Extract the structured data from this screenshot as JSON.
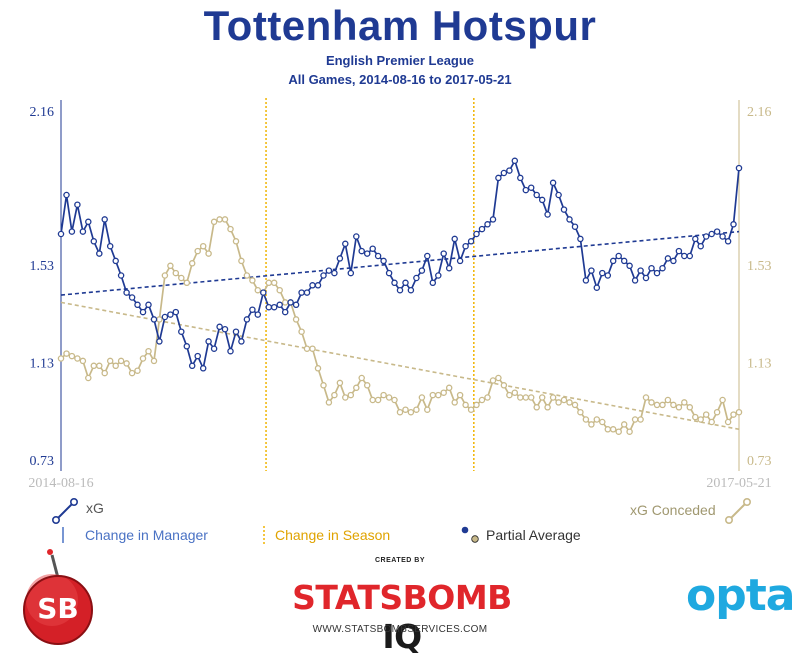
{
  "header": {
    "title": "Tottenham Hotspur",
    "subtitle": "English Premier League",
    "date_range": "All Games, 2014-08-16 to 2017-05-21"
  },
  "legend": {
    "xg": "xG",
    "xg_conceded": "xG Conceded",
    "change_manager": "Change in Manager",
    "change_season": "Change in Season",
    "partial_average": "Partial Average"
  },
  "footer": {
    "created_by": "CREATED BY",
    "brand": "STATSBOMB",
    "brand_iq": "IQ",
    "url": "WWW.STATSBOMBSERVICES.COM",
    "opta": "opta",
    "sb_badge": "SB"
  },
  "colors": {
    "xg": "#1f3a93",
    "xg_conceded": "#c8b98a",
    "season_line": "#f0b400",
    "manager_line": "#4a72c4",
    "axis_left": "#1f3a93",
    "axis_right": "#c8b98a",
    "brand_red": "#e0262b",
    "opta_blue": "#1fa9e0"
  },
  "chart_data": {
    "type": "line",
    "x_start": "2014-08-16",
    "x_end": "2017-05-21",
    "x_tick_labels": [
      "2014-08-16",
      "2017-05-21"
    ],
    "ylim": [
      0.73,
      2.16
    ],
    "y_ticks": [
      0.73,
      1.13,
      1.53,
      2.16
    ],
    "season_change_after_game": [
      38,
      76
    ],
    "series": [
      {
        "name": "xG",
        "values": [
          1.66,
          1.82,
          1.67,
          1.78,
          1.67,
          1.71,
          1.63,
          1.58,
          1.72,
          1.61,
          1.55,
          1.49,
          1.42,
          1.4,
          1.37,
          1.34,
          1.37,
          1.31,
          1.22,
          1.32,
          1.33,
          1.34,
          1.26,
          1.2,
          1.12,
          1.16,
          1.11,
          1.22,
          1.19,
          1.28,
          1.27,
          1.18,
          1.26,
          1.22,
          1.31,
          1.35,
          1.33,
          1.42,
          1.36,
          1.36,
          1.37,
          1.34,
          1.38,
          1.37,
          1.42,
          1.42,
          1.45,
          1.45,
          1.49,
          1.51,
          1.5,
          1.56,
          1.62,
          1.5,
          1.65,
          1.59,
          1.58,
          1.6,
          1.57,
          1.55,
          1.5,
          1.46,
          1.43,
          1.46,
          1.43,
          1.48,
          1.51,
          1.57,
          1.46,
          1.49,
          1.58,
          1.52,
          1.64,
          1.55,
          1.61,
          1.63,
          1.66,
          1.68,
          1.7,
          1.72,
          1.89,
          1.91,
          1.92,
          1.96,
          1.89,
          1.84,
          1.85,
          1.82,
          1.8,
          1.74,
          1.87,
          1.82,
          1.76,
          1.72,
          1.69,
          1.64,
          1.47,
          1.51,
          1.44,
          1.5,
          1.49,
          1.55,
          1.57,
          1.55,
          1.53,
          1.47,
          1.51,
          1.48,
          1.52,
          1.5,
          1.52,
          1.56,
          1.55,
          1.59,
          1.57,
          1.57,
          1.64,
          1.61,
          1.65,
          1.66,
          1.67,
          1.65,
          1.63,
          1.7,
          1.93
        ]
      },
      {
        "name": "xG Conceded",
        "values": [
          1.15,
          1.17,
          1.16,
          1.15,
          1.14,
          1.07,
          1.12,
          1.12,
          1.09,
          1.14,
          1.12,
          1.14,
          1.13,
          1.09,
          1.1,
          1.15,
          1.18,
          1.14,
          1.31,
          1.49,
          1.53,
          1.5,
          1.48,
          1.46,
          1.54,
          1.59,
          1.61,
          1.58,
          1.71,
          1.72,
          1.72,
          1.68,
          1.63,
          1.55,
          1.49,
          1.47,
          1.43,
          1.42,
          1.46,
          1.46,
          1.43,
          1.38,
          1.38,
          1.31,
          1.26,
          1.19,
          1.19,
          1.11,
          1.04,
          0.97,
          1.0,
          1.05,
          0.99,
          1.0,
          1.03,
          1.07,
          1.04,
          0.98,
          0.98,
          1.0,
          0.99,
          0.98,
          0.93,
          0.94,
          0.93,
          0.94,
          0.99,
          0.94,
          1.0,
          1.0,
          1.01,
          1.03,
          0.97,
          1.0,
          0.96,
          0.94,
          0.96,
          0.98,
          0.99,
          1.06,
          1.07,
          1.04,
          1.0,
          1.01,
          0.99,
          0.99,
          0.99,
          0.95,
          0.99,
          0.95,
          0.99,
          0.97,
          0.98,
          0.97,
          0.96,
          0.93,
          0.9,
          0.88,
          0.9,
          0.89,
          0.86,
          0.86,
          0.85,
          0.88,
          0.85,
          0.9,
          0.9,
          0.99,
          0.97,
          0.96,
          0.96,
          0.98,
          0.96,
          0.95,
          0.97,
          0.95,
          0.91,
          0.9,
          0.92,
          0.89,
          0.93,
          0.98,
          0.89,
          0.92,
          0.93
        ]
      }
    ],
    "partial_averages": [
      {
        "series": "xG",
        "start": 1.41,
        "end": 1.67
      },
      {
        "series": "xG Conceded",
        "start": 1.38,
        "end": 0.86
      }
    ]
  }
}
